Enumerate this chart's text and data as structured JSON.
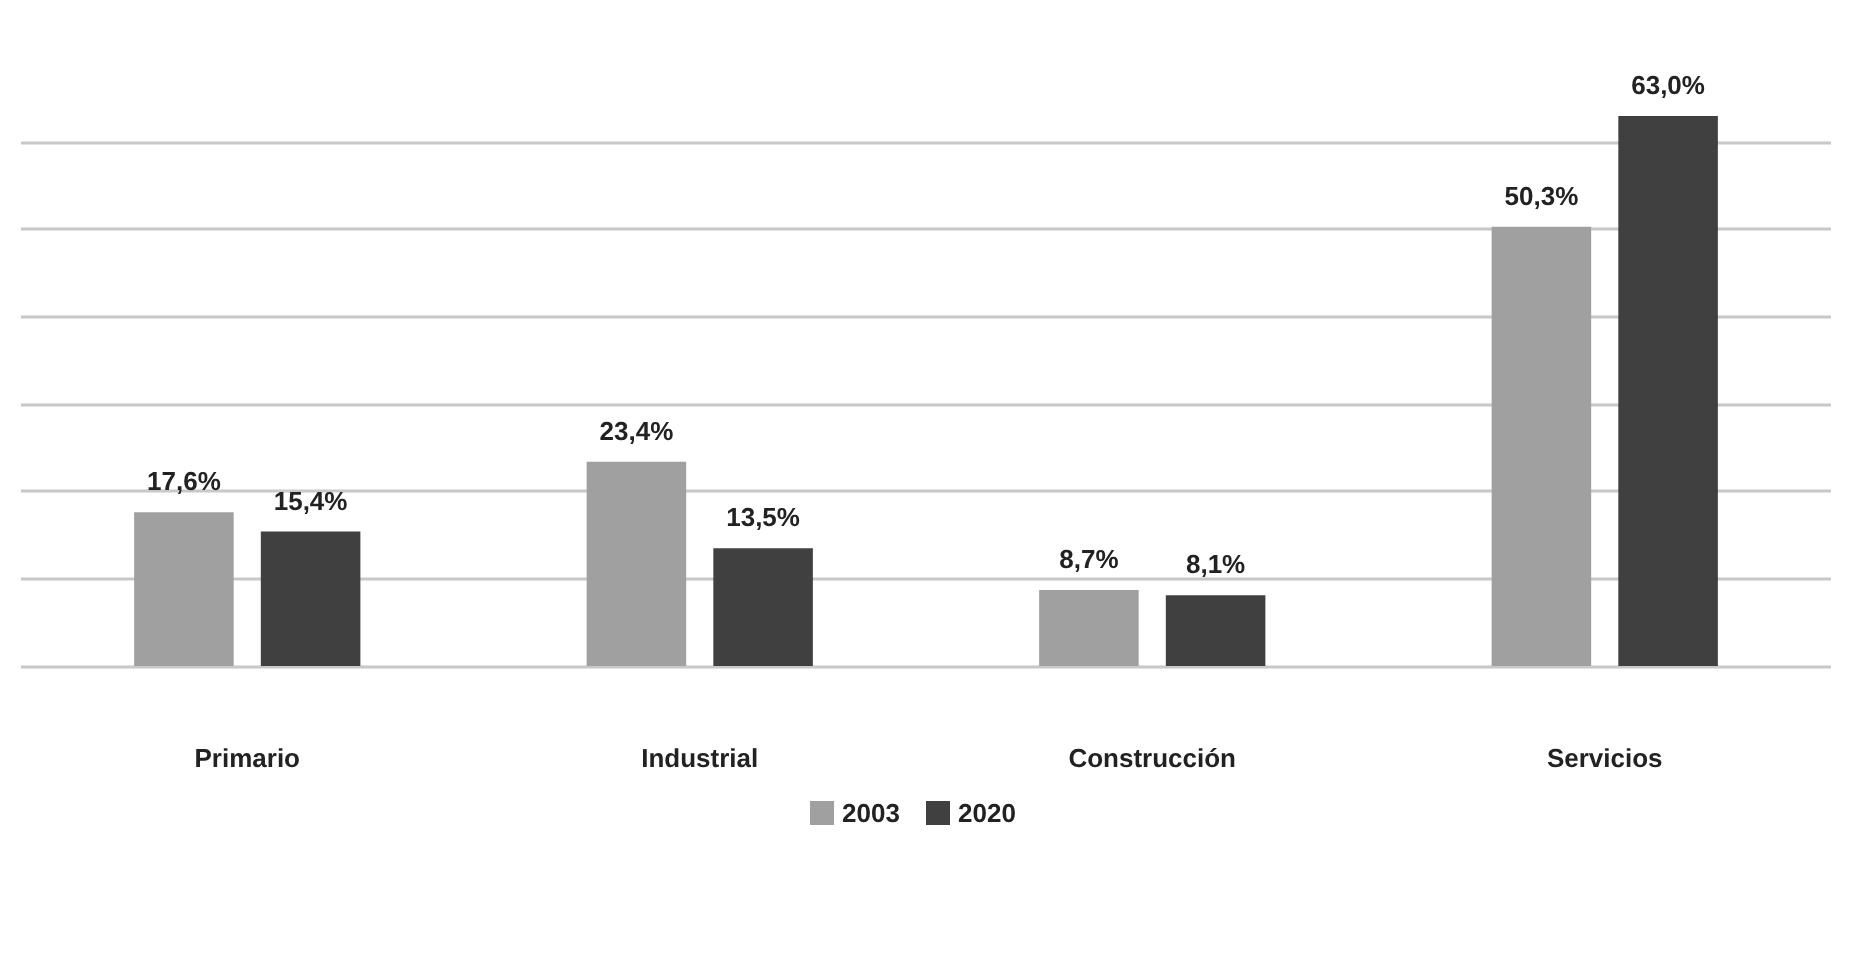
{
  "chart_data": {
    "type": "bar",
    "categories": [
      "Primario",
      "Industrial",
      "Construcción",
      "Servicios"
    ],
    "series": [
      {
        "name": "2003",
        "color": "#a0a0a0",
        "values": [
          17.6,
          23.4,
          8.7,
          50.3
        ],
        "value_labels": [
          "17,6%",
          "23,4%",
          "8,7%",
          "50,3%"
        ]
      },
      {
        "name": "2020",
        "color": "#404040",
        "values": [
          15.4,
          13.5,
          8.1,
          63.0
        ],
        "value_labels": [
          "15,4%",
          "13,5%",
          "8,1%",
          "63,0%"
        ]
      }
    ],
    "tick_labels": "x",
    "grid": "y",
    "legend": "bottom"
  }
}
